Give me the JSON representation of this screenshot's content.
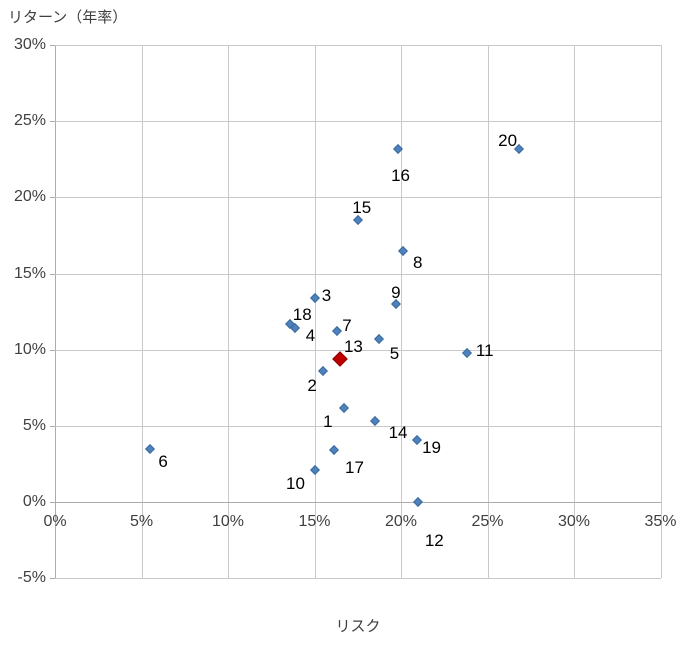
{
  "chart_data": {
    "type": "scatter",
    "title": "",
    "xlabel": "リスク",
    "ylabel": "リターン（年率）",
    "xlim": [
      0,
      35
    ],
    "ylim": [
      -5,
      30
    ],
    "grid": true,
    "legend": "none",
    "x_ticks": [
      {
        "value": 0,
        "label": "0%"
      },
      {
        "value": 5,
        "label": "5%"
      },
      {
        "value": 10,
        "label": "10%"
      },
      {
        "value": 15,
        "label": "15%"
      },
      {
        "value": 20,
        "label": "20%"
      },
      {
        "value": 25,
        "label": "25%"
      },
      {
        "value": 30,
        "label": "30%"
      },
      {
        "value": 35,
        "label": "35%"
      }
    ],
    "y_ticks": [
      {
        "value": 30,
        "label": "30%"
      },
      {
        "value": 25,
        "label": "25%"
      },
      {
        "value": 20,
        "label": "20%"
      },
      {
        "value": 15,
        "label": "15%"
      },
      {
        "value": 10,
        "label": "10%"
      },
      {
        "value": 5,
        "label": "5%"
      },
      {
        "value": 0,
        "label": "0%"
      },
      {
        "value": -5,
        "label": "-5%"
      }
    ],
    "series": [
      {
        "name": "series-1",
        "marker": {
          "shape": "diamond",
          "size": 7,
          "fill": "#4F81BD",
          "stroke": "#3A6C9E"
        },
        "points": [
          {
            "id": "1",
            "x": 16.7,
            "y": 6.2,
            "label_offset": [
              -16,
              14
            ]
          },
          {
            "id": "2",
            "x": 15.5,
            "y": 8.6,
            "label_offset": [
              -11,
              15
            ]
          },
          {
            "id": "3",
            "x": 15.0,
            "y": 13.4,
            "label_offset": [
              12,
              -2
            ]
          },
          {
            "id": "4",
            "x": 13.9,
            "y": 11.4,
            "label_offset": [
              15,
              8
            ]
          },
          {
            "id": "5",
            "x": 18.7,
            "y": 10.7,
            "label_offset": [
              16,
              15
            ]
          },
          {
            "id": "6",
            "x": 5.5,
            "y": 3.5,
            "label_offset": [
              13,
              13
            ]
          },
          {
            "id": "7",
            "x": 16.3,
            "y": 11.2,
            "label_offset": [
              10,
              -5
            ]
          },
          {
            "id": "8",
            "x": 20.1,
            "y": 16.5,
            "label_offset": [
              15,
              12
            ]
          },
          {
            "id": "9",
            "x": 19.7,
            "y": 13.0,
            "label_offset": [
              0,
              -11
            ]
          },
          {
            "id": "10",
            "x": 15.0,
            "y": 2.1,
            "label_offset": [
              -19,
              14
            ]
          },
          {
            "id": "11",
            "x": 23.8,
            "y": 9.8,
            "label_offset": [
              18,
              -2
            ]
          },
          {
            "id": "12",
            "x": 21.0,
            "y": 0.0,
            "label_offset": [
              16,
              39
            ]
          },
          {
            "id": "14",
            "x": 18.5,
            "y": 5.3,
            "label_offset": [
              23,
              12
            ]
          },
          {
            "id": "15",
            "x": 17.5,
            "y": 18.5,
            "label_offset": [
              4,
              -12
            ]
          },
          {
            "id": "16",
            "x": 19.8,
            "y": 23.2,
            "label_offset": [
              3,
              27
            ]
          },
          {
            "id": "17",
            "x": 16.1,
            "y": 3.4,
            "label_offset": [
              21,
              18
            ]
          },
          {
            "id": "18",
            "x": 13.6,
            "y": 11.7,
            "label_offset": [
              12,
              -9
            ]
          },
          {
            "id": "19",
            "x": 20.9,
            "y": 4.1,
            "label_offset": [
              15,
              8
            ]
          },
          {
            "id": "20",
            "x": 26.8,
            "y": 23.2,
            "label_offset": [
              -11,
              -8
            ]
          }
        ]
      },
      {
        "name": "highlight",
        "marker": {
          "shape": "diamond",
          "size": 11,
          "fill": "#C00000",
          "stroke": "#8E0000"
        },
        "points": [
          {
            "id": "13",
            "x": 16.5,
            "y": 9.4,
            "label_offset": [
              13,
              -12
            ]
          }
        ]
      }
    ],
    "colors": {
      "gridline": "#C9C9C9",
      "axis_line": "#ABABAB",
      "tick_text": "#404040",
      "point_label_text": "#000000",
      "background": "#FFFFFF"
    }
  }
}
